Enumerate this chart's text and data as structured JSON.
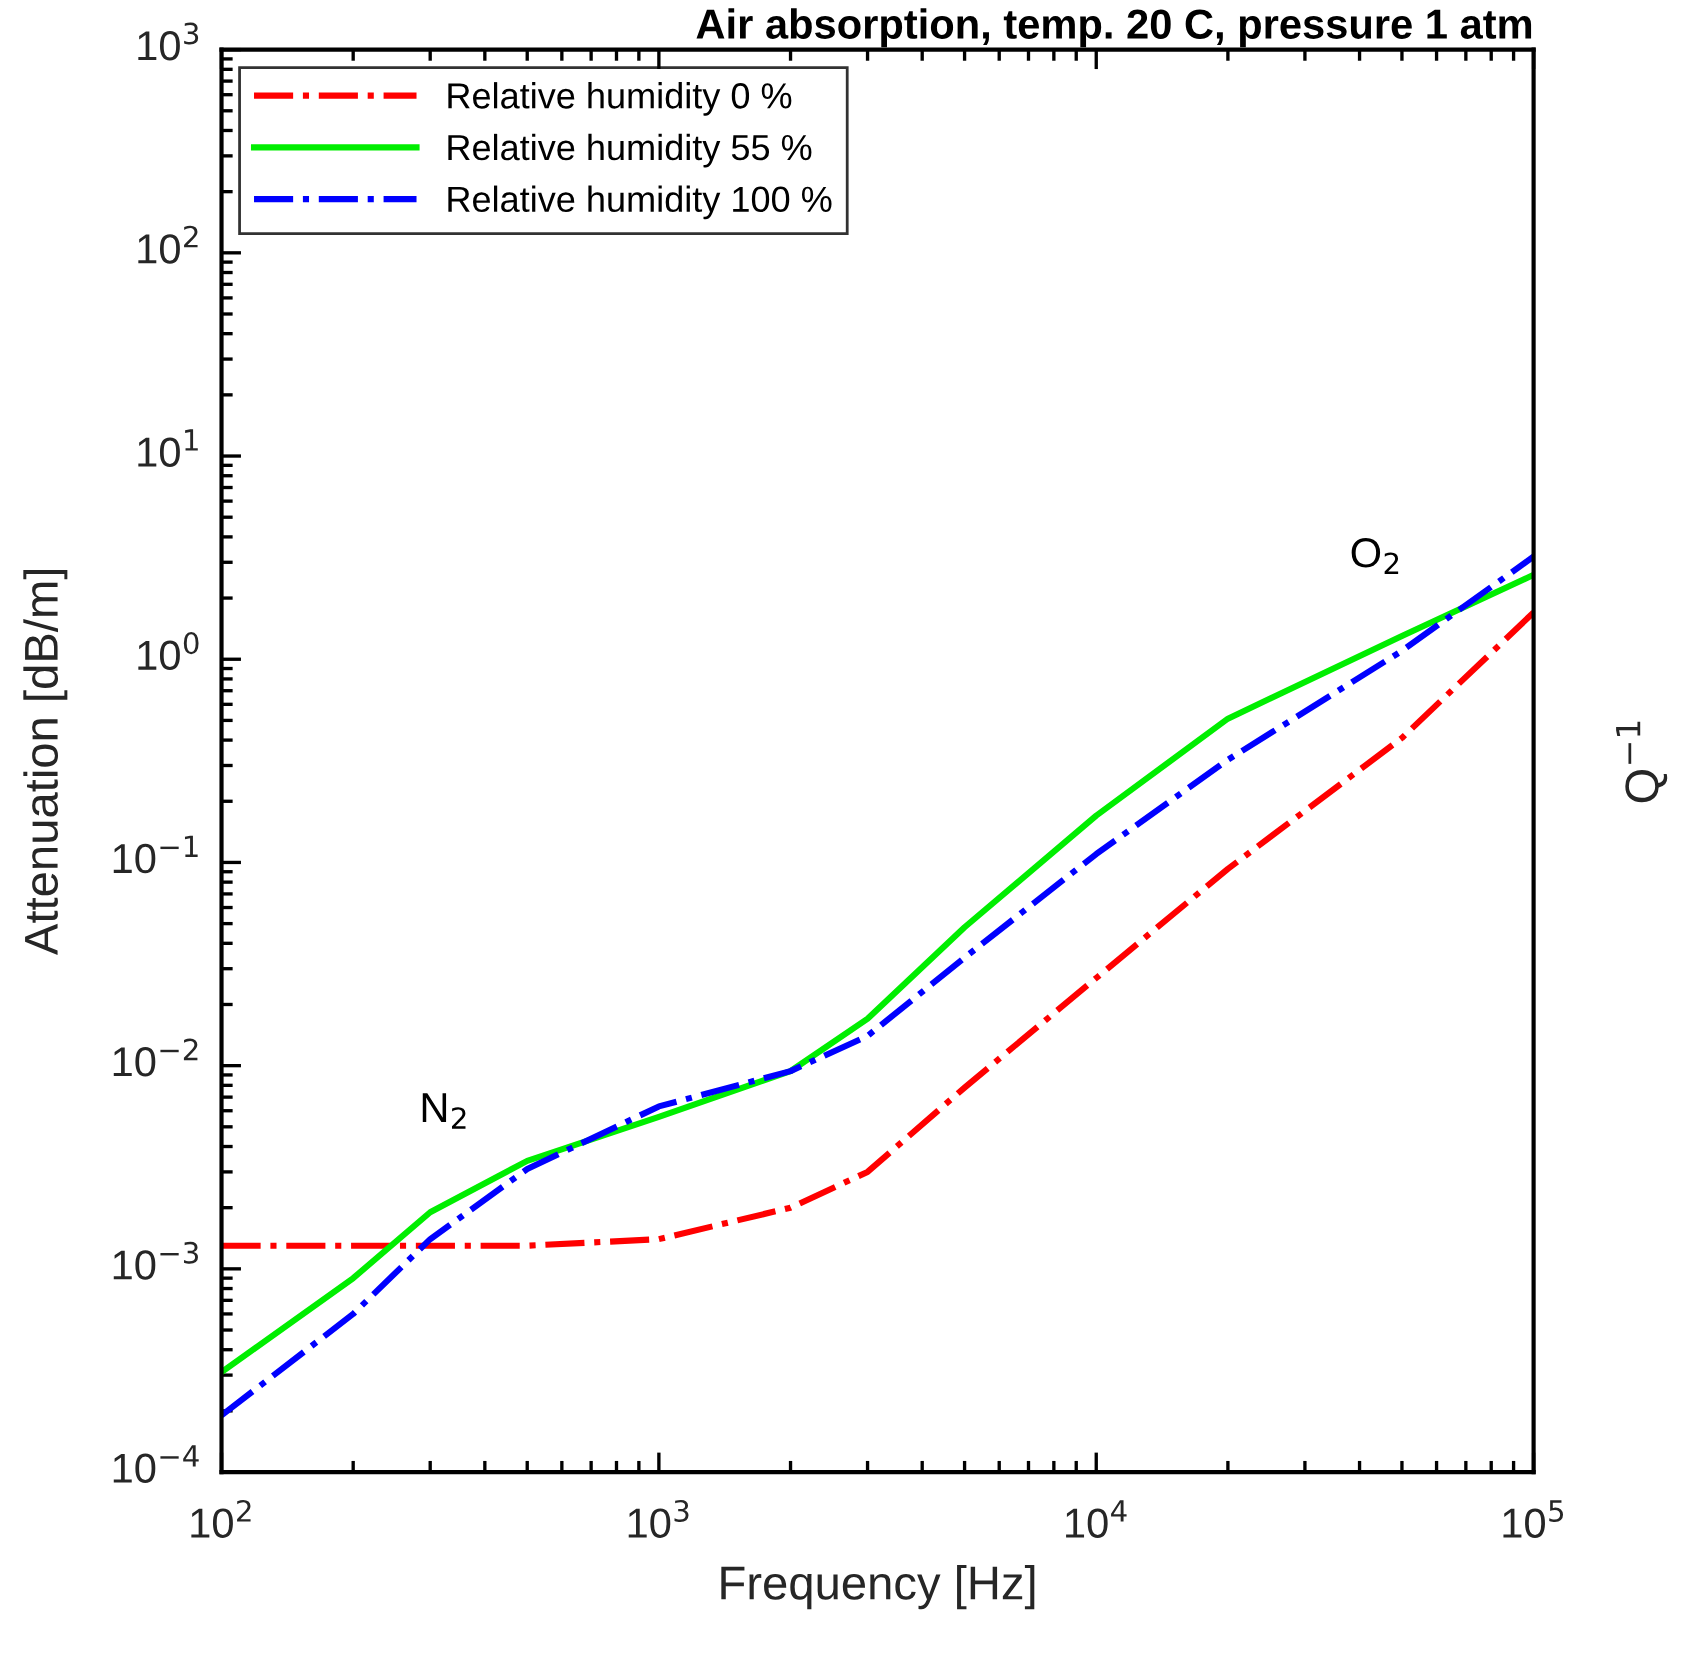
{
  "chart_data": {
    "type": "line",
    "title": "Air absorption, temp. 20 C, pressure 1 atm",
    "xlabel": "Frequency [Hz]",
    "ylabel": "Attenuation [dB/m]",
    "y2label": "Q$^{−1}$",
    "x": [
      100,
      200,
      300,
      500,
      1000,
      2000,
      3000,
      5000,
      10000,
      20000,
      50000,
      100000
    ],
    "series": [
      {
        "name": "Relative humidity 0 %",
        "color": "#ff0000",
        "line_style": "dashdot",
        "values": [
          0.0013,
          0.0013,
          0.0013,
          0.0013,
          0.0014,
          0.002,
          0.003,
          0.0078,
          0.027,
          0.093,
          0.41,
          1.7
        ]
      },
      {
        "name": "Relative humidity 55 %",
        "color": "#00ee00",
        "line_style": "solid",
        "values": [
          0.00031,
          0.0009,
          0.0019,
          0.0034,
          0.0056,
          0.0094,
          0.017,
          0.048,
          0.17,
          0.51,
          1.3,
          2.6
        ]
      },
      {
        "name": "Relative humidity 100 %",
        "color": "#0000ff",
        "line_style": "dashdot",
        "values": [
          0.00019,
          0.0006,
          0.0014,
          0.0031,
          0.0063,
          0.0094,
          0.014,
          0.034,
          0.11,
          0.32,
          1.1,
          3.2
        ]
      }
    ],
    "log": "xy",
    "xlim": [
      100,
      100000
    ],
    "ylim": [
      0.0001,
      1000
    ],
    "xticks": [
      {
        "value": 100,
        "label": "10$^{2}$"
      },
      {
        "value": 1000,
        "label": "10$^{3}$"
      },
      {
        "value": 10000,
        "label": "10$^{4}$"
      },
      {
        "value": 100000,
        "label": "10$^{5}$"
      }
    ],
    "yticks": [
      {
        "value": 0.0001,
        "label": "10$^{−4}$"
      },
      {
        "value": 0.001,
        "label": "10$^{−3}$"
      },
      {
        "value": 0.01,
        "label": "10$^{−2}$"
      },
      {
        "value": 0.1,
        "label": "10$^{−1}$"
      },
      {
        "value": 1,
        "label": "10$^{0}$"
      },
      {
        "value": 10,
        "label": "10$^{1}$"
      },
      {
        "value": 100,
        "label": "10$^{2}$"
      },
      {
        "value": 1000,
        "label": "10$^{3}$"
      }
    ],
    "annotations": [
      "N$_{2}$",
      "O$_{2}$"
    ],
    "grid": false,
    "legend": "top left"
  }
}
